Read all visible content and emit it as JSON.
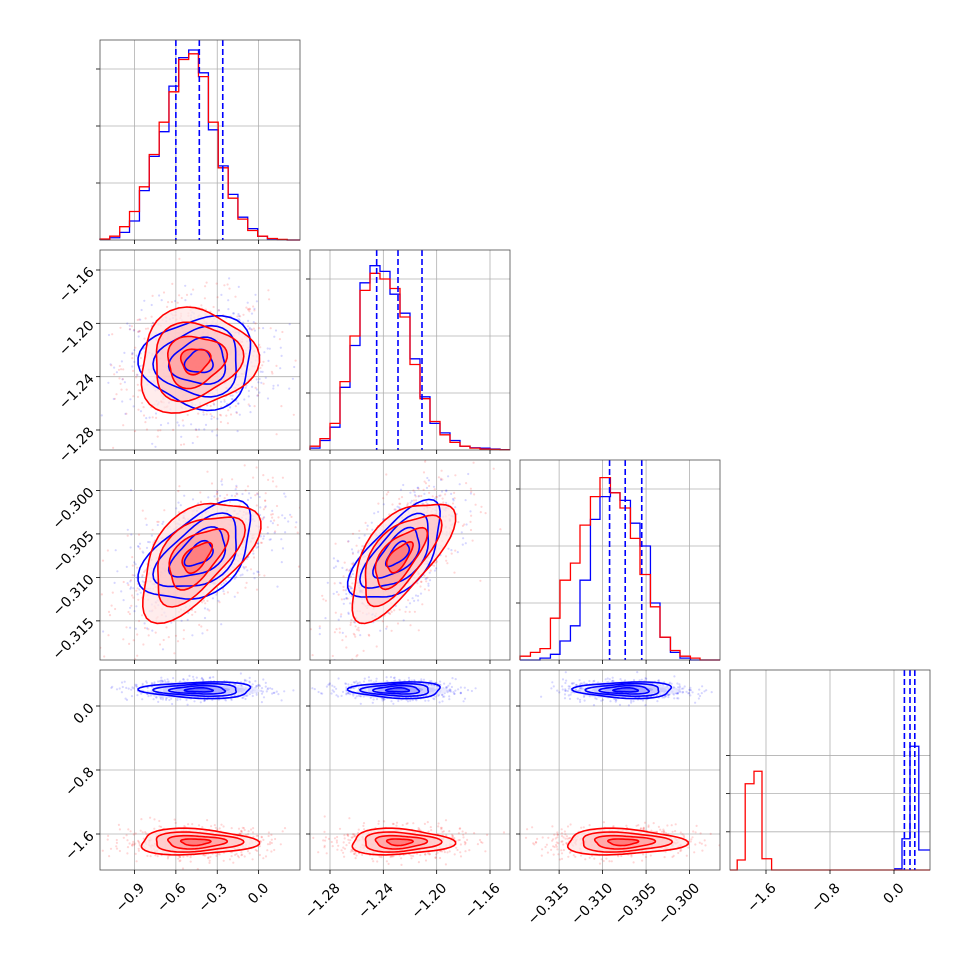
{
  "chart_data": {
    "type": "corner",
    "grid": true,
    "series": [
      {
        "color": "#0000ff"
      },
      {
        "color": "#ff0000"
      }
    ],
    "parameters": [
      {
        "ticks": [
          -0.9,
          -0.6,
          -0.3,
          0.0
        ],
        "tick_labels": [
          "−0.9",
          "−0.6",
          "−0.3",
          "0.0"
        ],
        "range": [
          -1.15,
          0.3
        ],
        "marginal": {
          "bin_edges": [
            -1.15,
            -1.079,
            -1.007,
            -0.936,
            -0.864,
            -0.793,
            -0.721,
            -0.65,
            -0.579,
            -0.507,
            -0.436,
            -0.364,
            -0.293,
            -0.221,
            -0.15,
            -0.079,
            -0.007,
            0.064,
            0.136,
            0.207,
            0.3
          ],
          "blue": [
            0.003,
            0.012,
            0.04,
            0.1,
            0.26,
            0.44,
            0.57,
            0.81,
            0.96,
            1.0,
            0.88,
            0.58,
            0.39,
            0.24,
            0.12,
            0.06,
            0.02,
            0.006,
            0.002,
            0.0
          ],
          "red": [
            0.005,
            0.02,
            0.07,
            0.15,
            0.28,
            0.45,
            0.62,
            0.78,
            0.95,
            0.98,
            0.86,
            0.62,
            0.38,
            0.22,
            0.11,
            0.05,
            0.02,
            0.008,
            0.003,
            0.0
          ],
          "quantile_lines": [
            -0.6,
            -0.43,
            -0.26
          ]
        }
      },
      {
        "ticks": [
          -1.28,
          -1.24,
          -1.2,
          -1.16
        ],
        "tick_labels": [
          "−1.28",
          "−1.24",
          "−1.20",
          "−1.16"
        ],
        "range": [
          -1.295,
          -1.145
        ],
        "marginal": {
          "bin_edges": [
            -1.295,
            -1.2875,
            -1.28,
            -1.2725,
            -1.265,
            -1.2575,
            -1.25,
            -1.2425,
            -1.235,
            -1.2275,
            -1.22,
            -1.2125,
            -1.205,
            -1.1975,
            -1.19,
            -1.1825,
            -1.175,
            -1.1675,
            -1.16,
            -1.1525,
            -1.145
          ],
          "blue": [
            0.01,
            0.05,
            0.12,
            0.33,
            0.55,
            0.88,
            0.97,
            0.94,
            0.82,
            0.72,
            0.48,
            0.28,
            0.14,
            0.09,
            0.05,
            0.02,
            0.012,
            0.01,
            0.005,
            0.002
          ],
          "red": [
            0.02,
            0.06,
            0.14,
            0.36,
            0.6,
            0.84,
            0.93,
            0.9,
            0.85,
            0.7,
            0.45,
            0.27,
            0.15,
            0.08,
            0.04,
            0.02,
            0.01,
            0.005,
            0.003,
            0.001
          ],
          "quantile_lines": [
            -1.245,
            -1.229,
            -1.211
          ]
        }
      },
      {
        "ticks": [
          -0.315,
          -0.31,
          -0.305,
          -0.3
        ],
        "tick_labels": [
          "−0.315",
          "−0.310",
          "−0.305",
          "−0.300"
        ],
        "range": [
          -0.3195,
          -0.2965
        ],
        "marginal": {
          "bin_edges": [
            -0.3195,
            -0.3183,
            -0.3172,
            -0.316,
            -0.3149,
            -0.3137,
            -0.3126,
            -0.3114,
            -0.3103,
            -0.3091,
            -0.308,
            -0.3068,
            -0.3057,
            -0.3045,
            -0.3034,
            -0.3022,
            -0.3011,
            -0.2999,
            -0.2988,
            -0.2976,
            -0.2965
          ],
          "blue": [
            0.0,
            0.0,
            0.01,
            0.03,
            0.1,
            0.18,
            0.42,
            0.74,
            0.86,
            0.88,
            0.84,
            0.72,
            0.6,
            0.3,
            0.12,
            0.04,
            0.01,
            0.0,
            0.0,
            0.0
          ],
          "red": [
            0.02,
            0.04,
            0.06,
            0.22,
            0.42,
            0.51,
            0.71,
            0.86,
            0.96,
            0.88,
            0.8,
            0.64,
            0.45,
            0.28,
            0.12,
            0.05,
            0.02,
            0.01,
            0.0,
            0.0
          ],
          "quantile_lines": [
            -0.3092,
            -0.3074,
            -0.3055
          ]
        }
      },
      {
        "ticks": [
          -1.6,
          -0.8,
          0.0
        ],
        "tick_labels": [
          "−1.6",
          "−0.8",
          "0.0"
        ],
        "range": [
          -2.05,
          0.45
        ],
        "marginal": {
          "bin_edges": [
            -2.05,
            -1.925,
            -1.8,
            -1.675,
            -1.55,
            -1.425,
            -1.3,
            -1.175,
            -1.05,
            -0.925,
            -0.8,
            -0.675,
            -0.55,
            -0.425,
            -0.3,
            -0.175,
            -0.05,
            0.075,
            0.2,
            0.325,
            0.45
          ],
          "blue": [
            0.0,
            0.0,
            0.0,
            0.0,
            0.0,
            0.0,
            0.0,
            0.0,
            0.0,
            0.0,
            0.0,
            0.0,
            0.0,
            0.0,
            0.0,
            0.0,
            0.0,
            0.0,
            0.0,
            0.0
          ],
          "blue_override": [
            {
              "x0": 0.01,
              "x1": 0.1,
              "h": 0.01
            },
            {
              "x0": 0.1,
              "x1": 0.2,
              "h": 0.25
            },
            {
              "x0": 0.2,
              "x1": 0.31,
              "h": 0.99
            },
            {
              "x0": 0.31,
              "x1": 0.45,
              "h": 0.16
            }
          ],
          "red_override": [
            {
              "x0": -2.05,
              "x1": -1.96,
              "h": 0.0
            },
            {
              "x0": -1.96,
              "x1": -1.86,
              "h": 0.08
            },
            {
              "x0": -1.86,
              "x1": -1.75,
              "h": 0.69
            },
            {
              "x0": -1.75,
              "x1": -1.65,
              "h": 0.79
            },
            {
              "x0": -1.65,
              "x1": -1.53,
              "h": 0.09
            },
            {
              "x0": -1.53,
              "x1": 0.45,
              "h": 0.0
            }
          ],
          "quantile_lines": [
            0.13,
            0.2,
            0.26
          ]
        }
      }
    ],
    "joint": [
      {
        "row": 1,
        "col": 0,
        "blue_center": [
          -0.43,
          -1.229
        ],
        "red_center": [
          -0.46,
          -1.228
        ],
        "blue_spread": [
          0.2,
          0.017
        ],
        "red_spread": [
          0.21,
          0.019
        ],
        "blue_rho": 0.05,
        "red_rho": 0.1
      },
      {
        "row": 2,
        "col": 0,
        "blue_center": [
          -0.43,
          -0.3073
        ],
        "red_center": [
          -0.45,
          -0.3077
        ],
        "blue_spread": [
          0.2,
          0.0028
        ],
        "red_spread": [
          0.21,
          0.0034
        ],
        "blue_rho": 0.5,
        "red_rho": 0.55
      },
      {
        "row": 2,
        "col": 1,
        "blue_center": [
          -1.229,
          -0.3073
        ],
        "red_center": [
          -1.228,
          -0.3077
        ],
        "blue_spread": [
          0.017,
          0.0028
        ],
        "red_spread": [
          0.019,
          0.0034
        ],
        "blue_rho": 0.62,
        "red_rho": 0.65
      },
      {
        "row": 3,
        "col": 0,
        "blue_center": [
          -0.43,
          0.2
        ],
        "red_center": [
          -0.46,
          -1.7
        ],
        "blue_spread": [
          0.2,
          0.05
        ],
        "red_spread": [
          0.21,
          0.08
        ],
        "blue_rho": 0.0,
        "red_rho": 0.0
      },
      {
        "row": 3,
        "col": 1,
        "blue_center": [
          -1.229,
          0.2
        ],
        "red_center": [
          -1.228,
          -1.7
        ],
        "blue_spread": [
          0.017,
          0.05
        ],
        "red_spread": [
          0.019,
          0.08
        ],
        "blue_rho": 0.0,
        "red_rho": 0.0
      },
      {
        "row": 3,
        "col": 2,
        "blue_center": [
          -0.3073,
          0.2
        ],
        "red_center": [
          -0.3077,
          -1.7
        ],
        "blue_spread": [
          0.0028,
          0.05
        ],
        "red_spread": [
          0.0034,
          0.08
        ],
        "blue_rho": 0.0,
        "red_rho": 0.0
      }
    ],
    "contour_levels": [
      0.5,
      1.0,
      1.5,
      2.0
    ]
  }
}
